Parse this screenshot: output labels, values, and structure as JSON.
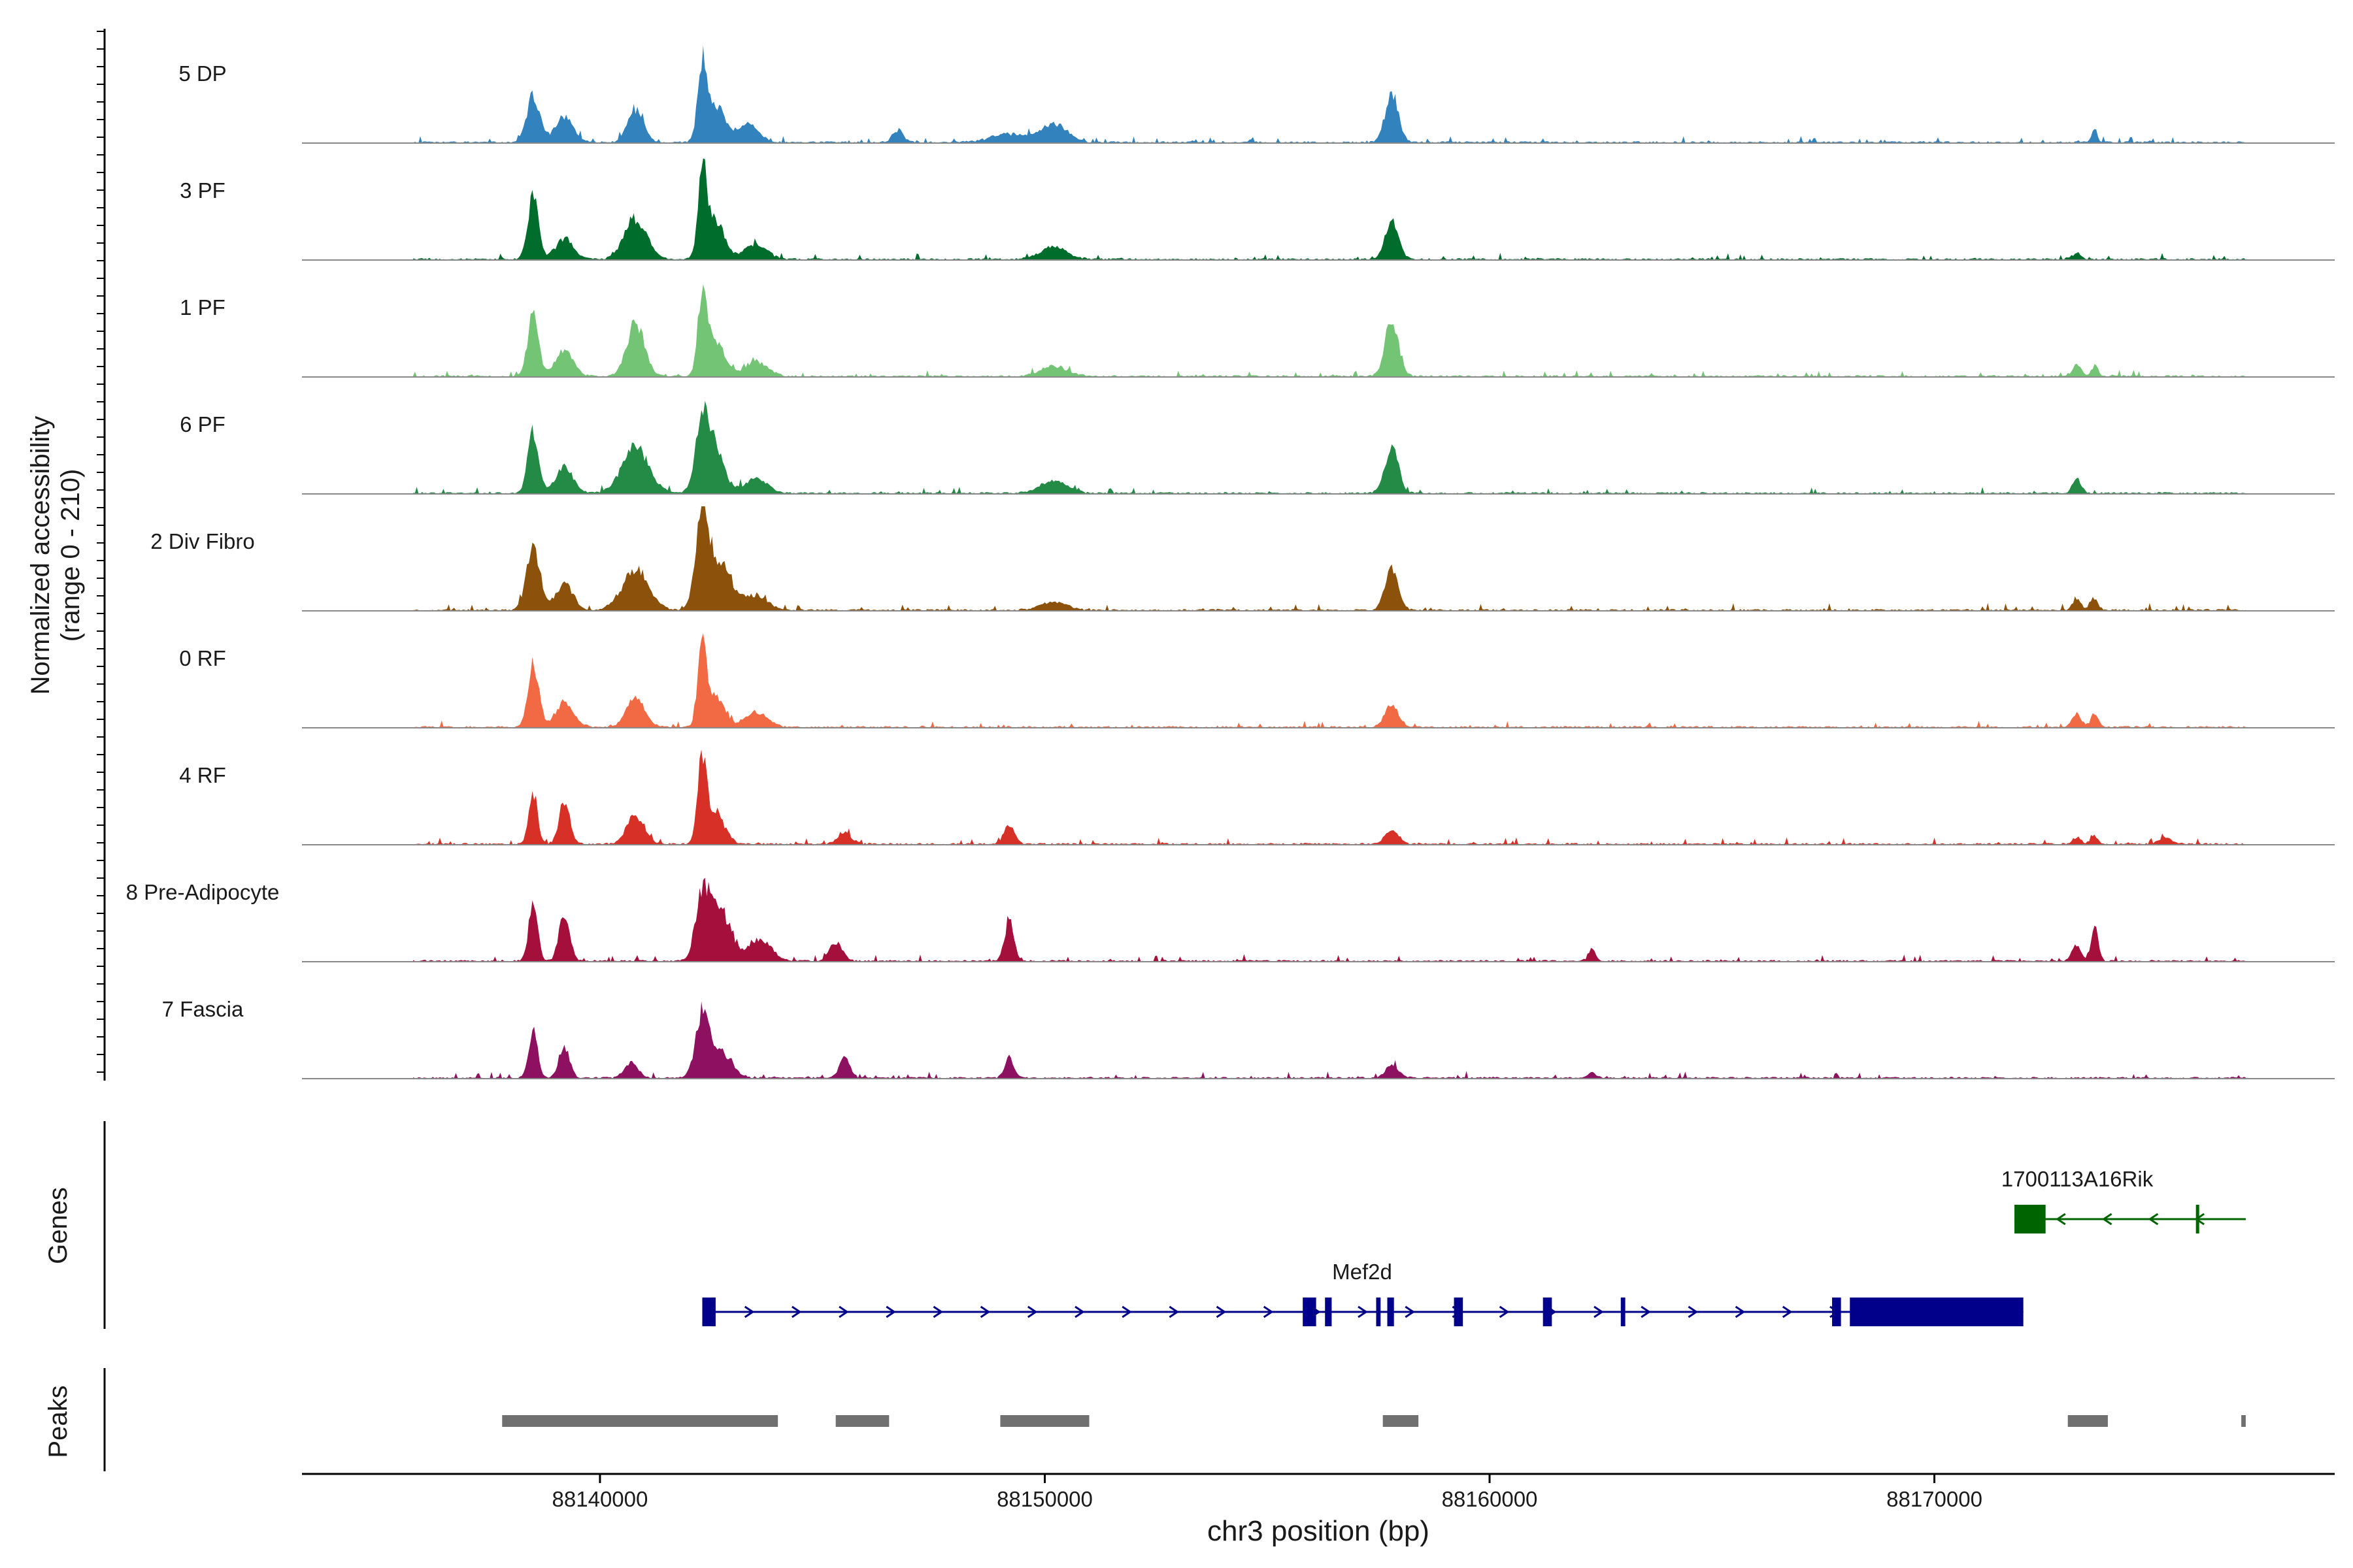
{
  "chart_data": {
    "type": "area",
    "title": "",
    "xlabel": "chr3 position (bp)",
    "ylabel": "Normalized accessibility",
    "ylabel_range": "(range 0 - 210)",
    "xlim": [
      88133300,
      88179000
    ],
    "ylim": [
      0,
      210
    ],
    "xticks": [
      88140000,
      88150000,
      88160000,
      88170000
    ],
    "xtick_labels": [
      "88140000",
      "88150000",
      "88160000",
      "88170000"
    ],
    "tracks": [
      {
        "name": "5 DP",
        "color": "#3182bd",
        "peaks": [
          [
            88138500,
            0.45,
            150
          ],
          [
            88139200,
            0.25,
            200
          ],
          [
            88140800,
            0.32,
            180
          ],
          [
            88142300,
            0.75,
            100
          ],
          [
            88142600,
            0.35,
            200
          ],
          [
            88143300,
            0.18,
            250
          ],
          [
            88146700,
            0.12,
            120
          ],
          [
            88150200,
            0.18,
            300
          ],
          [
            88149200,
            0.08,
            400
          ],
          [
            88157800,
            0.47,
            150
          ],
          [
            88173600,
            0.14,
            60
          ]
        ]
      },
      {
        "name": "3 PF",
        "color": "#006d2c",
        "peaks": [
          [
            88138500,
            0.62,
            120
          ],
          [
            88139200,
            0.2,
            200
          ],
          [
            88140800,
            0.4,
            250
          ],
          [
            88142300,
            0.8,
            100
          ],
          [
            88142600,
            0.38,
            200
          ],
          [
            88143500,
            0.15,
            250
          ],
          [
            88150200,
            0.12,
            300
          ],
          [
            88157800,
            0.38,
            150
          ],
          [
            88173200,
            0.06,
            100
          ]
        ]
      },
      {
        "name": "1 PF",
        "color": "#74c476",
        "peaks": [
          [
            88138500,
            0.62,
            120
          ],
          [
            88139200,
            0.25,
            200
          ],
          [
            88140800,
            0.52,
            200
          ],
          [
            88142300,
            0.8,
            100
          ],
          [
            88142600,
            0.35,
            200
          ],
          [
            88143500,
            0.15,
            250
          ],
          [
            88150200,
            0.1,
            300
          ],
          [
            88157800,
            0.55,
            150
          ],
          [
            88173200,
            0.12,
            100
          ],
          [
            88173600,
            0.1,
            80
          ]
        ]
      },
      {
        "name": "6 PF",
        "color": "#238b45",
        "peaks": [
          [
            88138500,
            0.62,
            120
          ],
          [
            88139200,
            0.25,
            200
          ],
          [
            88140800,
            0.45,
            300
          ],
          [
            88142300,
            0.7,
            150
          ],
          [
            88142600,
            0.4,
            200
          ],
          [
            88143500,
            0.15,
            250
          ],
          [
            88150200,
            0.12,
            300
          ],
          [
            88157800,
            0.45,
            150
          ],
          [
            88173200,
            0.14,
            100
          ]
        ]
      },
      {
        "name": "2 Div Fibro",
        "color": "#8c510a",
        "peaks": [
          [
            88138500,
            0.62,
            150
          ],
          [
            88139200,
            0.25,
            200
          ],
          [
            88140800,
            0.4,
            300
          ],
          [
            88142300,
            0.9,
            150
          ],
          [
            88142700,
            0.45,
            250
          ],
          [
            88143500,
            0.15,
            250
          ],
          [
            88150200,
            0.08,
            300
          ],
          [
            88157800,
            0.4,
            150
          ],
          [
            88173200,
            0.1,
            100
          ],
          [
            88173600,
            0.12,
            80
          ]
        ]
      },
      {
        "name": "0 RF",
        "color": "#f16a44",
        "peaks": [
          [
            88138500,
            0.62,
            120
          ],
          [
            88139200,
            0.25,
            200
          ],
          [
            88140800,
            0.3,
            200
          ],
          [
            88142300,
            0.75,
            100
          ],
          [
            88142600,
            0.3,
            200
          ],
          [
            88143500,
            0.15,
            250
          ],
          [
            88157800,
            0.22,
            150
          ],
          [
            88173200,
            0.14,
            100
          ],
          [
            88173600,
            0.14,
            80
          ]
        ]
      },
      {
        "name": "4 RF",
        "color": "#d73027",
        "peaks": [
          [
            88138500,
            0.5,
            100
          ],
          [
            88139200,
            0.42,
            120
          ],
          [
            88140800,
            0.28,
            200
          ],
          [
            88142300,
            0.8,
            100
          ],
          [
            88142600,
            0.3,
            200
          ],
          [
            88145500,
            0.12,
            150
          ],
          [
            88149200,
            0.18,
            120
          ],
          [
            88157800,
            0.14,
            150
          ],
          [
            88173200,
            0.06,
            100
          ],
          [
            88173600,
            0.08,
            80
          ],
          [
            88175200,
            0.06,
            150
          ]
        ]
      },
      {
        "name": "8 Pre-Adipocyte",
        "color": "#a50f3c",
        "peaks": [
          [
            88138500,
            0.58,
            100
          ],
          [
            88139200,
            0.45,
            120
          ],
          [
            88142300,
            0.62,
            150
          ],
          [
            88142700,
            0.5,
            250
          ],
          [
            88143600,
            0.22,
            250
          ],
          [
            88145300,
            0.18,
            150
          ],
          [
            88149200,
            0.42,
            100
          ],
          [
            88162300,
            0.12,
            80
          ],
          [
            88173600,
            0.35,
            80
          ],
          [
            88173200,
            0.15,
            100
          ]
        ]
      },
      {
        "name": "7 Fascia",
        "color": "#8e1060",
        "peaks": [
          [
            88138500,
            0.48,
            100
          ],
          [
            88139200,
            0.3,
            120
          ],
          [
            88140700,
            0.15,
            150
          ],
          [
            88142300,
            0.6,
            150
          ],
          [
            88142700,
            0.25,
            250
          ],
          [
            88145500,
            0.2,
            120
          ],
          [
            88149200,
            0.2,
            100
          ],
          [
            88157800,
            0.12,
            150
          ],
          [
            88162300,
            0.07,
            80
          ]
        ]
      }
    ],
    "genes_label": "Genes",
    "genes": [
      {
        "name": "1700113A16Rik",
        "strand": "-",
        "start": 88171800,
        "end": 88177000,
        "color": "#006400",
        "exons": [
          [
            88171800,
            88172500
          ],
          [
            88175880,
            88175920
          ]
        ]
      },
      {
        "name": "Mef2d",
        "strand": "+",
        "start": 88142300,
        "end": 88172000,
        "color": "#00008b",
        "exons": [
          [
            88142300,
            88142600
          ],
          [
            88155800,
            88156100
          ],
          [
            88156300,
            88156450
          ],
          [
            88157450,
            88157550
          ],
          [
            88157700,
            88157850
          ],
          [
            88159200,
            88159400
          ],
          [
            88161200,
            88161400
          ],
          [
            88162950,
            88163050
          ],
          [
            88167700,
            88167900
          ],
          [
            88168100,
            88172000
          ]
        ]
      }
    ],
    "peaks_label": "Peaks",
    "peak_regions": [
      [
        88137800,
        88144000
      ],
      [
        88145300,
        88146500
      ],
      [
        88149000,
        88151000
      ],
      [
        88157600,
        88158400
      ],
      [
        88173000,
        88173900
      ],
      [
        88176900,
        88177000
      ]
    ]
  }
}
